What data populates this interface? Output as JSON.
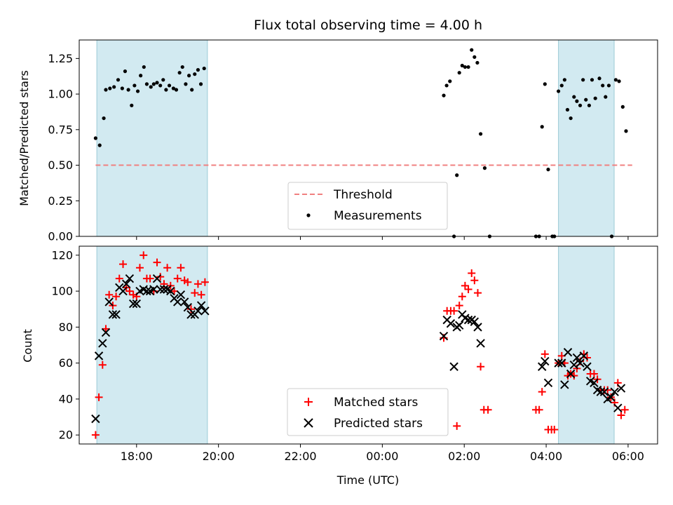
{
  "chart_data": {
    "title": "Flux total observing time = 4.00 h",
    "xlabel": "Time (UTC)",
    "x_tick_labels": [
      "18:00",
      "20:00",
      "22:00",
      "00:00",
      "02:00",
      "04:00",
      "06:00"
    ],
    "x_ticks_hours": [
      18,
      20,
      22,
      24,
      26,
      28,
      30
    ],
    "xlim_hours": [
      16.6,
      30.72
    ],
    "shaded_intervals_hours": [
      [
        17.03,
        19.73
      ],
      [
        28.3,
        29.66
      ]
    ],
    "shade_color": "#add8e6",
    "panels": [
      {
        "type": "scatter",
        "ylabel": "Matched/Predicted stars",
        "ylim": [
          0,
          1.38
        ],
        "y_ticks": [
          0.0,
          0.25,
          0.5,
          0.75,
          1.0,
          1.25
        ],
        "y_tick_labels": [
          "0.00",
          "0.25",
          "0.50",
          "0.75",
          "1.00",
          "1.25"
        ],
        "threshold": {
          "name": "Threshold",
          "value": 0.5,
          "x_range": [
            17.0,
            30.1
          ],
          "color": "#f08080"
        },
        "series": [
          {
            "name": "Measurements",
            "marker": "dot",
            "color": "#000000",
            "points": [
              [
                17.0,
                0.69
              ],
              [
                17.1,
                0.64
              ],
              [
                17.2,
                0.83
              ],
              [
                17.25,
                1.03
              ],
              [
                17.35,
                1.04
              ],
              [
                17.45,
                1.05
              ],
              [
                17.55,
                1.1
              ],
              [
                17.65,
                1.04
              ],
              [
                17.72,
                1.16
              ],
              [
                17.8,
                1.03
              ],
              [
                17.88,
                0.92
              ],
              [
                17.95,
                1.06
              ],
              [
                18.03,
                1.02
              ],
              [
                18.1,
                1.13
              ],
              [
                18.18,
                1.19
              ],
              [
                18.25,
                1.07
              ],
              [
                18.35,
                1.05
              ],
              [
                18.42,
                1.07
              ],
              [
                18.5,
                1.08
              ],
              [
                18.58,
                1.06
              ],
              [
                18.65,
                1.1
              ],
              [
                18.72,
                1.03
              ],
              [
                18.8,
                1.06
              ],
              [
                18.9,
                1.04
              ],
              [
                18.97,
                1.03
              ],
              [
                19.05,
                1.15
              ],
              [
                19.12,
                1.19
              ],
              [
                19.2,
                1.07
              ],
              [
                19.28,
                1.13
              ],
              [
                19.35,
                1.03
              ],
              [
                19.42,
                1.14
              ],
              [
                19.5,
                1.17
              ],
              [
                19.57,
                1.07
              ],
              [
                19.65,
                1.18
              ],
              [
                25.5,
                0.99
              ],
              [
                25.57,
                1.06
              ],
              [
                25.65,
                1.09
              ],
              [
                25.75,
                0.0
              ],
              [
                25.82,
                0.43
              ],
              [
                25.88,
                1.15
              ],
              [
                25.95,
                1.2
              ],
              [
                26.02,
                1.19
              ],
              [
                26.1,
                1.19
              ],
              [
                26.18,
                1.31
              ],
              [
                26.25,
                1.26
              ],
              [
                26.32,
                1.22
              ],
              [
                26.4,
                0.72
              ],
              [
                26.5,
                0.48
              ],
              [
                26.62,
                0.0
              ],
              [
                27.75,
                0.0
              ],
              [
                27.83,
                0.0
              ],
              [
                27.9,
                0.77
              ],
              [
                27.97,
                1.07
              ],
              [
                28.05,
                0.47
              ],
              [
                28.15,
                0.0
              ],
              [
                28.2,
                0.0
              ],
              [
                28.3,
                1.02
              ],
              [
                28.38,
                1.06
              ],
              [
                28.45,
                1.1
              ],
              [
                28.52,
                0.89
              ],
              [
                28.6,
                0.83
              ],
              [
                28.68,
                0.98
              ],
              [
                28.75,
                0.95
              ],
              [
                28.83,
                0.92
              ],
              [
                28.9,
                1.1
              ],
              [
                28.97,
                0.96
              ],
              [
                29.05,
                0.92
              ],
              [
                29.12,
                1.1
              ],
              [
                29.2,
                0.97
              ],
              [
                29.3,
                1.11
              ],
              [
                29.38,
                1.06
              ],
              [
                29.45,
                0.98
              ],
              [
                29.53,
                1.06
              ],
              [
                29.6,
                0.0
              ],
              [
                29.7,
                1.1
              ],
              [
                29.78,
                1.09
              ],
              [
                29.87,
                0.91
              ],
              [
                29.95,
                0.74
              ]
            ]
          }
        ],
        "legend": {
          "position": "lower-center",
          "entries": [
            "Threshold",
            "Measurements"
          ]
        }
      },
      {
        "type": "scatter",
        "ylabel": "Count",
        "ylim": [
          15,
          125
        ],
        "y_ticks": [
          20,
          40,
          60,
          80,
          100,
          120
        ],
        "y_tick_labels": [
          "20",
          "40",
          "60",
          "80",
          "100",
          "120"
        ],
        "series": [
          {
            "name": "Matched stars",
            "marker": "plus",
            "color": "#ff0000",
            "points": [
              [
                17.0,
                20
              ],
              [
                17.08,
                41
              ],
              [
                17.17,
                59
              ],
              [
                17.25,
                79
              ],
              [
                17.33,
                98
              ],
              [
                17.42,
                92
              ],
              [
                17.5,
                97
              ],
              [
                17.58,
                107
              ],
              [
                17.67,
                115
              ],
              [
                17.75,
                102
              ],
              [
                17.83,
                100
              ],
              [
                17.92,
                98
              ],
              [
                18.0,
                97
              ],
              [
                18.08,
                113
              ],
              [
                18.17,
                120
              ],
              [
                18.25,
                107
              ],
              [
                18.33,
                107
              ],
              [
                18.42,
                100
              ],
              [
                18.5,
                116
              ],
              [
                18.58,
                108
              ],
              [
                18.67,
                104
              ],
              [
                18.75,
                113
              ],
              [
                18.83,
                103
              ],
              [
                18.92,
                100
              ],
              [
                19.0,
                107
              ],
              [
                19.08,
                113
              ],
              [
                19.17,
                106
              ],
              [
                19.25,
                105
              ],
              [
                19.33,
                90
              ],
              [
                19.42,
                99
              ],
              [
                19.5,
                104
              ],
              [
                19.58,
                98
              ],
              [
                19.67,
                105
              ],
              [
                25.5,
                74
              ],
              [
                25.58,
                89
              ],
              [
                25.67,
                89
              ],
              [
                25.75,
                89
              ],
              [
                25.82,
                25
              ],
              [
                25.88,
                92
              ],
              [
                25.95,
                97
              ],
              [
                26.02,
                103
              ],
              [
                26.1,
                101
              ],
              [
                26.18,
                110
              ],
              [
                26.25,
                106
              ],
              [
                26.33,
                99
              ],
              [
                26.4,
                58
              ],
              [
                26.48,
                34
              ],
              [
                26.58,
                34
              ],
              [
                27.75,
                34
              ],
              [
                27.83,
                34
              ],
              [
                27.9,
                44
              ],
              [
                27.97,
                65
              ],
              [
                28.05,
                23
              ],
              [
                28.13,
                23
              ],
              [
                28.2,
                23
              ],
              [
                28.3,
                60
              ],
              [
                28.38,
                64
              ],
              [
                28.45,
                60
              ],
              [
                28.53,
                53
              ],
              [
                28.6,
                54
              ],
              [
                28.68,
                53
              ],
              [
                28.75,
                57
              ],
              [
                28.83,
                61
              ],
              [
                28.92,
                65
              ],
              [
                29.0,
                63
              ],
              [
                29.08,
                54
              ],
              [
                29.17,
                54
              ],
              [
                29.25,
                51
              ],
              [
                29.33,
                45
              ],
              [
                29.42,
                45
              ],
              [
                29.5,
                45
              ],
              [
                29.58,
                41
              ],
              [
                29.67,
                38
              ],
              [
                29.75,
                49
              ],
              [
                29.83,
                31
              ],
              [
                29.92,
                34
              ]
            ]
          },
          {
            "name": "Predicted stars",
            "marker": "x",
            "color": "#000000",
            "points": [
              [
                17.0,
                29
              ],
              [
                17.08,
                64
              ],
              [
                17.17,
                71
              ],
              [
                17.25,
                77
              ],
              [
                17.33,
                94
              ],
              [
                17.42,
                87
              ],
              [
                17.5,
                87
              ],
              [
                17.58,
                102
              ],
              [
                17.67,
                100
              ],
              [
                17.75,
                104
              ],
              [
                17.83,
                107
              ],
              [
                17.92,
                93
              ],
              [
                18.0,
                93
              ],
              [
                18.08,
                100
              ],
              [
                18.17,
                101
              ],
              [
                18.25,
                100
              ],
              [
                18.33,
                100
              ],
              [
                18.42,
                101
              ],
              [
                18.5,
                107
              ],
              [
                18.58,
                101
              ],
              [
                18.67,
                101
              ],
              [
                18.75,
                101
              ],
              [
                18.83,
                100
              ],
              [
                18.92,
                96
              ],
              [
                19.0,
                94
              ],
              [
                19.08,
                98
              ],
              [
                19.17,
                94
              ],
              [
                19.25,
                91
              ],
              [
                19.33,
                87
              ],
              [
                19.42,
                87
              ],
              [
                19.5,
                89
              ],
              [
                19.58,
                92
              ],
              [
                19.67,
                89
              ],
              [
                25.5,
                75
              ],
              [
                25.58,
                84
              ],
              [
                25.67,
                82
              ],
              [
                25.75,
                58
              ],
              [
                25.82,
                80
              ],
              [
                25.88,
                81
              ],
              [
                25.95,
                87
              ],
              [
                26.02,
                85
              ],
              [
                26.1,
                84
              ],
              [
                26.18,
                84
              ],
              [
                26.25,
                83
              ],
              [
                26.33,
                80
              ],
              [
                26.4,
                71
              ],
              [
                27.9,
                58
              ],
              [
                27.97,
                61
              ],
              [
                28.05,
                49
              ],
              [
                28.3,
                60
              ],
              [
                28.38,
                60
              ],
              [
                28.45,
                48
              ],
              [
                28.53,
                66
              ],
              [
                28.6,
                54
              ],
              [
                28.68,
                59
              ],
              [
                28.75,
                63
              ],
              [
                28.83,
                60
              ],
              [
                28.92,
                64
              ],
              [
                29.0,
                58
              ],
              [
                29.08,
                50
              ],
              [
                29.17,
                49
              ],
              [
                29.25,
                45
              ],
              [
                29.33,
                44
              ],
              [
                29.42,
                44
              ],
              [
                29.5,
                40
              ],
              [
                29.58,
                41
              ],
              [
                29.67,
                44
              ],
              [
                29.75,
                35
              ],
              [
                29.83,
                46
              ]
            ]
          }
        ],
        "legend": {
          "position": "lower-center",
          "entries": [
            "Matched stars",
            "Predicted stars"
          ]
        }
      }
    ]
  }
}
